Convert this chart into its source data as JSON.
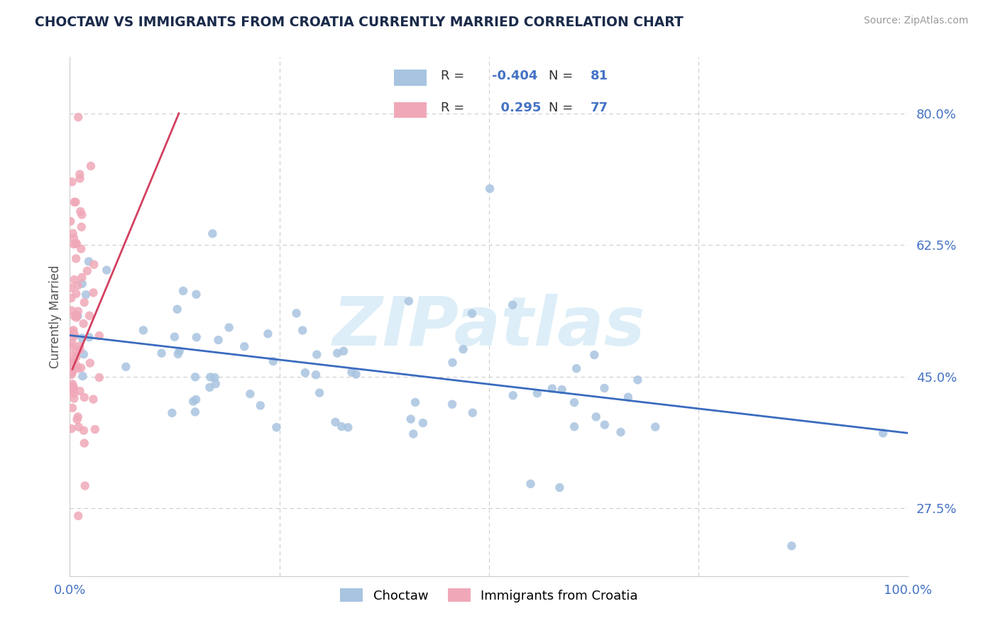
{
  "title": "CHOCTAW VS IMMIGRANTS FROM CROATIA CURRENTLY MARRIED CORRELATION CHART",
  "source": "Source: ZipAtlas.com",
  "ylabel": "Currently Married",
  "xlim": [
    0.0,
    1.0
  ],
  "ylim": [
    0.185,
    0.875
  ],
  "yticks": [
    0.275,
    0.45,
    0.625,
    0.8
  ],
  "ytick_labels": [
    "27.5%",
    "45.0%",
    "62.5%",
    "80.0%"
  ],
  "xticks": [
    0.0,
    0.25,
    0.5,
    0.75,
    1.0
  ],
  "xtick_labels": [
    "0.0%",
    "",
    "",
    "",
    "100.0%"
  ],
  "blue_R": "-0.404",
  "blue_N": "81",
  "pink_R": "0.295",
  "pink_N": "77",
  "blue_label": "Choctaw",
  "pink_label": "Immigrants from Croatia",
  "scatter_blue": "#a8c4e0",
  "scatter_pink": "#f0a8b8",
  "line_blue": "#3a6bbf",
  "line_pink": "#d44060",
  "grid_color": "#cccccc",
  "title_color": "#1a2a4a",
  "source_color": "#999999",
  "tick_color": "#4472c4",
  "watermark": "ZIPatlas",
  "watermark_color": "#ddeef8",
  "blue_line_x0": 0.0,
  "blue_line_y0": 0.505,
  "blue_line_x1": 1.0,
  "blue_line_y1": 0.375,
  "pink_line_x0": 0.003,
  "pink_line_y0": 0.46,
  "pink_line_x1": 0.13,
  "pink_line_y1": 0.8
}
